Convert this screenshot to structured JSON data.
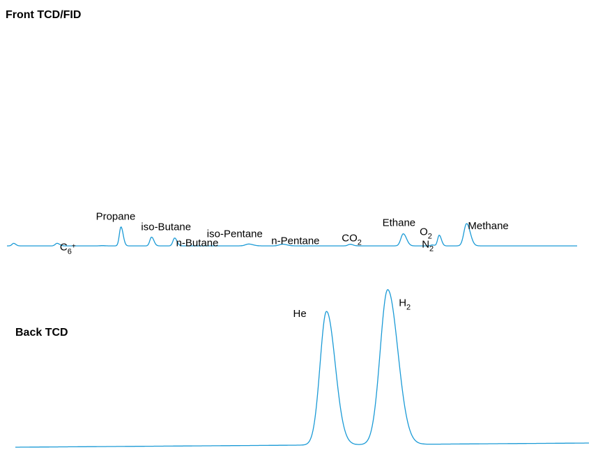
{
  "chart_data": {
    "type": "line",
    "color": "#1a9ad6",
    "axes_shown": false,
    "panels": [
      {
        "title": "Front TCD/FID",
        "ylim": [
          0,
          100
        ],
        "peaks": [
          {
            "label": "",
            "x": 1.5,
            "height": 11,
            "width": 0.3
          },
          {
            "label": "C",
            "sub": "6",
            "sup": "+",
            "x": 9.6,
            "height": 11,
            "width": 0.35
          },
          {
            "label": "",
            "x": 18.0,
            "height": 1,
            "width": 0.4
          },
          {
            "label": "Propane",
            "x": 21.5,
            "height": 82,
            "width": 0.3
          },
          {
            "label": "iso-Butane",
            "x": 27.2,
            "height": 38,
            "width": 0.32
          },
          {
            "label": "n-Butane",
            "x": 31.5,
            "height": 34,
            "width": 0.32
          },
          {
            "label": "iso-Pentane",
            "x": 45.3,
            "height": 8,
            "width": 0.6
          },
          {
            "label": "n-Pentane",
            "x": 51.6,
            "height": 7.5,
            "width": 0.6
          },
          {
            "label": "CO",
            "sub": "2",
            "x": 64.2,
            "height": 7,
            "width": 0.4
          },
          {
            "label": "Ethane",
            "x": 74.1,
            "height": 52,
            "width": 0.45
          },
          {
            "label": "O",
            "sub": "2",
            "x": 79.5,
            "height": 4,
            "width": 0.28
          },
          {
            "label": "N",
            "sub": "2",
            "x": 80.8,
            "height": 46,
            "width": 0.3
          },
          {
            "label": "Methane",
            "x": 85.9,
            "height": 96,
            "width": 0.5
          }
        ]
      },
      {
        "title": "Back TCD",
        "ylim": [
          0,
          100
        ],
        "peaks": [
          {
            "label": "He",
            "x": 59.8,
            "height": 88,
            "width": 1.2
          },
          {
            "label": "H",
            "sub": "2",
            "x": 71.2,
            "height": 102,
            "width": 1.4
          }
        ]
      }
    ]
  }
}
